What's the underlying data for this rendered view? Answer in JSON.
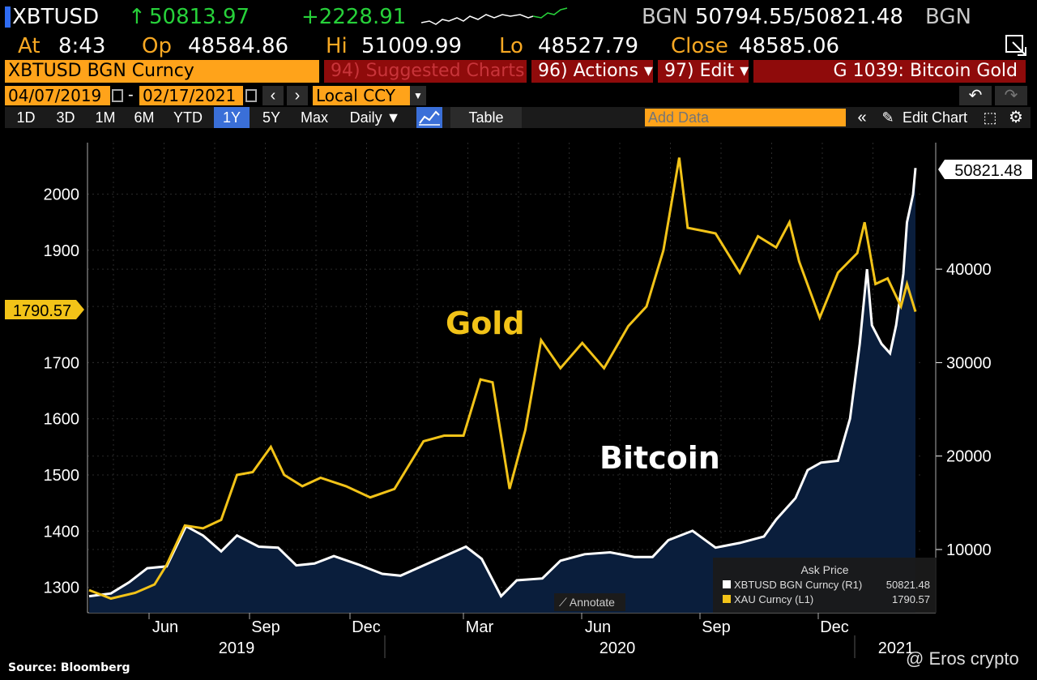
{
  "header": {
    "ticker": "XBTUSD",
    "arrow": "↑",
    "last_price": "50813.97",
    "change": "+2228.91",
    "source_left": "BGN",
    "bid_ask": "50794.55/50821.48",
    "source_right": "BGN",
    "at_label": "At",
    "at_value": "8:43",
    "op_label": "Op",
    "op_value": "48584.86",
    "hi_label": "Hi",
    "hi_value": "51009.99",
    "lo_label": "Lo",
    "lo_value": "48527.79",
    "close_label": "Close",
    "close_value": "48585.06"
  },
  "toolbar": {
    "security": "XBTUSD BGN Curncy",
    "suggested": "94) Suggested Charts",
    "actions": "96) Actions ▾",
    "edit": "97) Edit ▾",
    "page": "G 1039: Bitcoin Gold",
    "start_date": "04/07/2019",
    "end_date": "02/17/2021",
    "date_sep": "-",
    "currency": "Local CCY",
    "undo_icon": "undo-icon",
    "redo_icon": "redo-icon"
  },
  "ranges": {
    "items": [
      "1D",
      "3D",
      "1M",
      "6M",
      "YTD",
      "1Y",
      "5Y",
      "Max"
    ],
    "selected": "1Y",
    "period": "Daily ▼",
    "table": "Table",
    "add_data_placeholder": "Add Data",
    "edit_chart": "Edit Chart"
  },
  "chart_data": {
    "type": "line",
    "title": "",
    "x_ticks": [
      "Jun",
      "Sep",
      "Dec",
      "Mar",
      "Jun",
      "Sep",
      "Dec"
    ],
    "years": [
      "2019",
      "2020",
      "2021"
    ],
    "left_axis": {
      "ticks": [
        1300,
        1400,
        1500,
        1600,
        1700,
        1800,
        1900,
        2000
      ],
      "range": [
        1277,
        2100
      ]
    },
    "right_axis": {
      "ticks": [
        10000,
        20000,
        30000,
        40000
      ],
      "range": [
        4200,
        52000
      ]
    },
    "series": [
      {
        "name": "XAU Curncy (L1)",
        "axis": "left",
        "color": "#f2c318",
        "label": "Gold",
        "last_label": "1790.57",
        "points": [
          [
            "2019-04-07",
            1295
          ],
          [
            "2019-04-25",
            1280
          ],
          [
            "2019-05-15",
            1290
          ],
          [
            "2019-05-31",
            1305
          ],
          [
            "2019-06-10",
            1340
          ],
          [
            "2019-06-25",
            1410
          ],
          [
            "2019-07-10",
            1405
          ],
          [
            "2019-07-25",
            1420
          ],
          [
            "2019-08-07",
            1500
          ],
          [
            "2019-08-20",
            1505
          ],
          [
            "2019-09-04",
            1550
          ],
          [
            "2019-09-15",
            1500
          ],
          [
            "2019-09-30",
            1480
          ],
          [
            "2019-10-15",
            1495
          ],
          [
            "2019-11-05",
            1480
          ],
          [
            "2019-11-25",
            1460
          ],
          [
            "2019-12-15",
            1475
          ],
          [
            "2020-01-08",
            1560
          ],
          [
            "2020-01-25",
            1570
          ],
          [
            "2020-02-10",
            1570
          ],
          [
            "2020-02-24",
            1670
          ],
          [
            "2020-03-05",
            1665
          ],
          [
            "2020-03-19",
            1475
          ],
          [
            "2020-04-01",
            1580
          ],
          [
            "2020-04-14",
            1740
          ],
          [
            "2020-04-30",
            1690
          ],
          [
            "2020-05-18",
            1735
          ],
          [
            "2020-06-05",
            1690
          ],
          [
            "2020-06-25",
            1765
          ],
          [
            "2020-07-10",
            1800
          ],
          [
            "2020-07-24",
            1900
          ],
          [
            "2020-08-06",
            2065
          ],
          [
            "2020-08-13",
            1940
          ],
          [
            "2020-08-25",
            1935
          ],
          [
            "2020-09-05",
            1930
          ],
          [
            "2020-09-25",
            1860
          ],
          [
            "2020-10-10",
            1925
          ],
          [
            "2020-10-25",
            1905
          ],
          [
            "2020-11-05",
            1950
          ],
          [
            "2020-11-13",
            1880
          ],
          [
            "2020-11-30",
            1780
          ],
          [
            "2020-12-15",
            1860
          ],
          [
            "2020-12-31",
            1895
          ],
          [
            "2021-01-06",
            1950
          ],
          [
            "2021-01-15",
            1840
          ],
          [
            "2021-01-25",
            1850
          ],
          [
            "2021-02-05",
            1800
          ],
          [
            "2021-02-10",
            1840
          ],
          [
            "2021-02-17",
            1790.57
          ]
        ]
      },
      {
        "name": "XBTUSD BGN Curncy (R1)",
        "axis": "right",
        "color": "#ffffff",
        "fill": "#0a1e3c",
        "label": "Bitcoin",
        "last_label": "50821.48",
        "points": [
          [
            "2019-04-07",
            5000
          ],
          [
            "2019-04-25",
            5300
          ],
          [
            "2019-05-10",
            6500
          ],
          [
            "2019-05-25",
            8000
          ],
          [
            "2019-06-10",
            8200
          ],
          [
            "2019-06-26",
            12500
          ],
          [
            "2019-07-10",
            11500
          ],
          [
            "2019-07-25",
            9800
          ],
          [
            "2019-08-07",
            11500
          ],
          [
            "2019-08-25",
            10300
          ],
          [
            "2019-09-10",
            10200
          ],
          [
            "2019-09-25",
            8300
          ],
          [
            "2019-10-10",
            8500
          ],
          [
            "2019-10-26",
            9300
          ],
          [
            "2019-11-15",
            8400
          ],
          [
            "2019-12-05",
            7400
          ],
          [
            "2019-12-20",
            7200
          ],
          [
            "2020-01-15",
            8700
          ],
          [
            "2020-02-12",
            10300
          ],
          [
            "2020-02-25",
            9000
          ],
          [
            "2020-03-12",
            5000
          ],
          [
            "2020-03-25",
            6700
          ],
          [
            "2020-04-15",
            6900
          ],
          [
            "2020-04-30",
            8800
          ],
          [
            "2020-05-20",
            9500
          ],
          [
            "2020-06-10",
            9700
          ],
          [
            "2020-06-30",
            9200
          ],
          [
            "2020-07-15",
            9200
          ],
          [
            "2020-07-28",
            11000
          ],
          [
            "2020-08-17",
            12000
          ],
          [
            "2020-09-05",
            10200
          ],
          [
            "2020-09-25",
            10700
          ],
          [
            "2020-10-15",
            11400
          ],
          [
            "2020-10-25",
            13200
          ],
          [
            "2020-11-10",
            15500
          ],
          [
            "2020-11-20",
            18500
          ],
          [
            "2020-12-01",
            19300
          ],
          [
            "2020-12-15",
            19500
          ],
          [
            "2020-12-25",
            24000
          ],
          [
            "2021-01-02",
            32000
          ],
          [
            "2021-01-08",
            40000
          ],
          [
            "2021-01-12",
            34000
          ],
          [
            "2021-01-20",
            32000
          ],
          [
            "2021-01-27",
            31000
          ],
          [
            "2021-02-01",
            34000
          ],
          [
            "2021-02-07",
            39500
          ],
          [
            "2021-02-10",
            45000
          ],
          [
            "2021-02-15",
            48000
          ],
          [
            "2021-02-17",
            50821.48
          ]
        ]
      }
    ],
    "legend": {
      "placement": "bottom-right",
      "title": "Ask Price",
      "entries": [
        {
          "name": "XBTUSD BGN Curncy (R1)",
          "value": "50821.48",
          "color": "#ffffff"
        },
        {
          "name": "XAU Curncy (L1)",
          "value": "1790.57",
          "color": "#f2c318"
        }
      ]
    },
    "grid": true
  },
  "annotate_label": "Annotate",
  "source": "Source: Bloomberg",
  "watermark": "@ Eros crypto"
}
